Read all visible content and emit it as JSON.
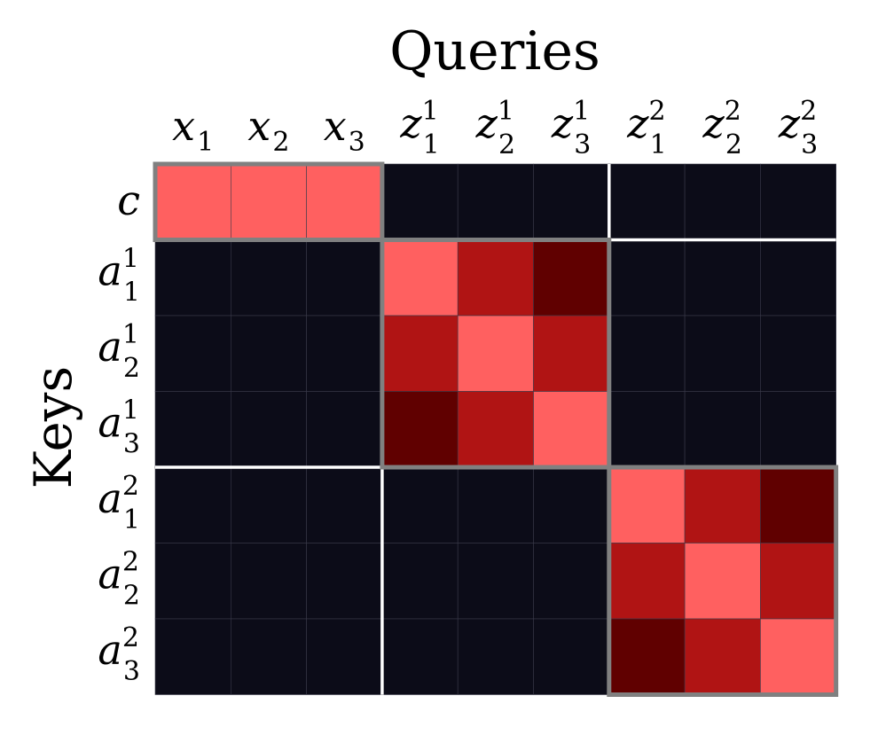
{
  "title": "Queries",
  "ylabel": "Keys",
  "columns": [
    {
      "base": "x",
      "sup": "",
      "sub": "1"
    },
    {
      "base": "x",
      "sup": "",
      "sub": "2"
    },
    {
      "base": "x",
      "sup": "",
      "sub": "3"
    },
    {
      "base": "z",
      "sup": "1",
      "sub": "1"
    },
    {
      "base": "z",
      "sup": "1",
      "sub": "2"
    },
    {
      "base": "z",
      "sup": "1",
      "sub": "3"
    },
    {
      "base": "z",
      "sup": "2",
      "sub": "1"
    },
    {
      "base": "z",
      "sup": "2",
      "sub": "2"
    },
    {
      "base": "z",
      "sup": "2",
      "sub": "3"
    }
  ],
  "rows": [
    {
      "base": "c",
      "sup": "",
      "sub": ""
    },
    {
      "base": "a",
      "sup": "1",
      "sub": "1"
    },
    {
      "base": "a",
      "sup": "1",
      "sub": "2"
    },
    {
      "base": "a",
      "sup": "1",
      "sub": "3"
    },
    {
      "base": "a",
      "sup": "2",
      "sub": "1"
    },
    {
      "base": "a",
      "sup": "2",
      "sub": "2"
    },
    {
      "base": "a",
      "sup": "2",
      "sub": "3"
    }
  ],
  "cells": [
    [
      3,
      3,
      3,
      0,
      0,
      0,
      0,
      0,
      0
    ],
    [
      0,
      0,
      0,
      3,
      2,
      1,
      0,
      0,
      0
    ],
    [
      0,
      0,
      0,
      2,
      3,
      2,
      0,
      0,
      0
    ],
    [
      0,
      0,
      0,
      1,
      2,
      3,
      0,
      0,
      0
    ],
    [
      0,
      0,
      0,
      0,
      0,
      0,
      3,
      2,
      1
    ],
    [
      0,
      0,
      0,
      0,
      0,
      0,
      2,
      3,
      2
    ],
    [
      0,
      0,
      0,
      0,
      0,
      0,
      1,
      2,
      3
    ]
  ],
  "levels": {
    "0": "#0c0c18",
    "1": "#600000",
    "2": "#b01414",
    "3": "#ff6060"
  },
  "colors": {
    "grid": "#3a3a4a",
    "separator": "#ffffff",
    "box": "#808080"
  },
  "groups": [
    {
      "row_start": 0,
      "row_end": 0,
      "col_start": 0,
      "col_end": 2
    },
    {
      "row_start": 1,
      "row_end": 3,
      "col_start": 3,
      "col_end": 5
    },
    {
      "row_start": 4,
      "row_end": 6,
      "col_start": 6,
      "col_end": 8
    }
  ],
  "separators": {
    "after_rows": [
      0,
      3
    ],
    "after_cols": [
      2,
      5
    ]
  }
}
